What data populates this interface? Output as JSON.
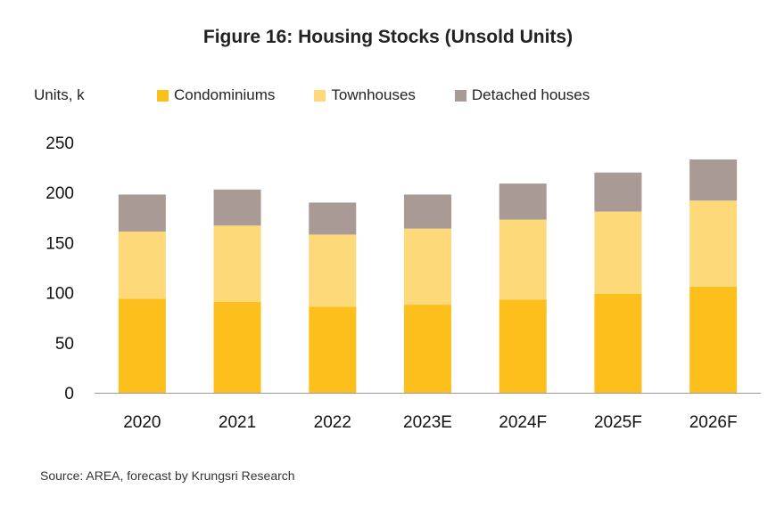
{
  "chart_data": {
    "type": "bar",
    "stacked": true,
    "title": "Figure 16: Housing Stocks (Unsold Units)",
    "ylabel": "Units, k",
    "xlabel": "",
    "ylim": [
      0,
      250
    ],
    "yticks": [
      0,
      50,
      100,
      150,
      200,
      250
    ],
    "grid": false,
    "legend_position": "top",
    "categories": [
      "2020",
      "2021",
      "2022",
      "2023E",
      "2024F",
      "2025F",
      "2026F"
    ],
    "series": [
      {
        "name": "Condominiums",
        "color": "#fdbf1c",
        "values": [
          94,
          91,
          86,
          88,
          93,
          99,
          106
        ]
      },
      {
        "name": "Townhouses",
        "color": "#fed97a",
        "values": [
          67,
          76,
          72,
          76,
          80,
          82,
          86
        ]
      },
      {
        "name": "Detached houses",
        "color": "#aa9a96",
        "values": [
          37,
          36,
          32,
          34,
          36,
          39,
          41
        ]
      }
    ]
  },
  "source": "Source: AREA, forecast by Krungsri Research"
}
